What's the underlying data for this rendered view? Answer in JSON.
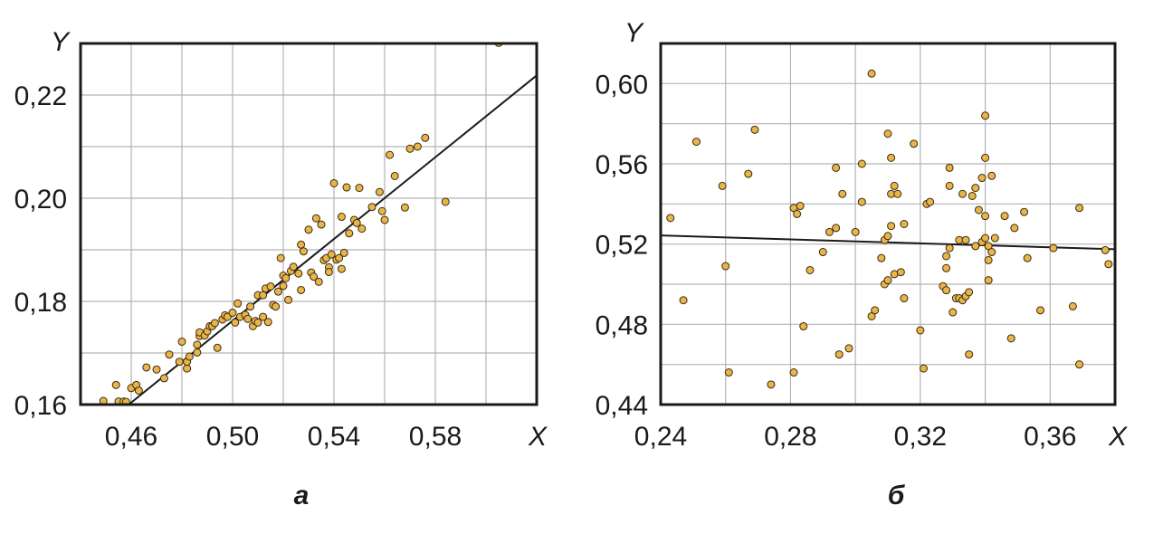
{
  "colors": {
    "point_fill": "#e8b54a",
    "point_stroke": "#3a2a10",
    "line": "#1a1a1a",
    "grid": "#b4b4b4"
  },
  "chart_data": [
    {
      "type": "scatter",
      "panel_label": "а",
      "xlabel": "X",
      "ylabel": "Y",
      "xlim": [
        0.44,
        0.62
      ],
      "ylim": [
        0.16,
        0.23
      ],
      "xticks": [
        0.46,
        0.5,
        0.54,
        0.58
      ],
      "yticks": [
        0.16,
        0.18,
        0.2,
        0.22
      ],
      "xtick_labels": [
        "0,46",
        "0,50",
        "0,54",
        "0,58"
      ],
      "ytick_labels": [
        "0,16",
        "0,18",
        "0,20",
        "0,22"
      ],
      "xgrid": [
        0.44,
        0.46,
        0.48,
        0.5,
        0.52,
        0.54,
        0.56,
        0.58,
        0.6,
        0.62
      ],
      "ygrid": [
        0.16,
        0.17,
        0.18,
        0.19,
        0.2,
        0.21,
        0.22,
        0.23
      ],
      "grid": true,
      "fit_line": {
        "x": [
          0.459,
          0.62
        ],
        "y": [
          0.16,
          0.2238
        ]
      },
      "points": [
        [
          0.449,
          0.1607
        ],
        [
          0.454,
          0.1638
        ],
        [
          0.455,
          0.1606
        ],
        [
          0.457,
          0.1606
        ],
        [
          0.458,
          0.1605
        ],
        [
          0.46,
          0.1632
        ],
        [
          0.462,
          0.1638
        ],
        [
          0.463,
          0.1627
        ],
        [
          0.466,
          0.1672
        ],
        [
          0.47,
          0.1668
        ],
        [
          0.473,
          0.1651
        ],
        [
          0.475,
          0.1697
        ],
        [
          0.479,
          0.1683
        ],
        [
          0.48,
          0.1722
        ],
        [
          0.482,
          0.167
        ],
        [
          0.482,
          0.1683
        ],
        [
          0.483,
          0.1693
        ],
        [
          0.486,
          0.1701
        ],
        [
          0.486,
          0.1716
        ],
        [
          0.487,
          0.1733
        ],
        [
          0.487,
          0.174
        ],
        [
          0.489,
          0.1734
        ],
        [
          0.49,
          0.1742
        ],
        [
          0.491,
          0.1752
        ],
        [
          0.492,
          0.1752
        ],
        [
          0.493,
          0.1758
        ],
        [
          0.494,
          0.171
        ],
        [
          0.496,
          0.1765
        ],
        [
          0.497,
          0.1773
        ],
        [
          0.498,
          0.177
        ],
        [
          0.5,
          0.1778
        ],
        [
          0.501,
          0.1759
        ],
        [
          0.502,
          0.1796
        ],
        [
          0.503,
          0.177
        ],
        [
          0.505,
          0.1774
        ],
        [
          0.506,
          0.1766
        ],
        [
          0.507,
          0.179
        ],
        [
          0.508,
          0.1752
        ],
        [
          0.509,
          0.1762
        ],
        [
          0.51,
          0.1759
        ],
        [
          0.51,
          0.1812
        ],
        [
          0.512,
          0.1812
        ],
        [
          0.512,
          0.177
        ],
        [
          0.513,
          0.1825
        ],
        [
          0.514,
          0.176
        ],
        [
          0.515,
          0.1829
        ],
        [
          0.516,
          0.1793
        ],
        [
          0.517,
          0.179
        ],
        [
          0.518,
          0.1819
        ],
        [
          0.519,
          0.1884
        ],
        [
          0.52,
          0.183
        ],
        [
          0.52,
          0.185
        ],
        [
          0.521,
          0.1845
        ],
        [
          0.522,
          0.1803
        ],
        [
          0.523,
          0.1859
        ],
        [
          0.524,
          0.1867
        ],
        [
          0.526,
          0.1854
        ],
        [
          0.527,
          0.1822
        ],
        [
          0.527,
          0.191
        ],
        [
          0.528,
          0.1897
        ],
        [
          0.53,
          0.1939
        ],
        [
          0.531,
          0.1856
        ],
        [
          0.532,
          0.1848
        ],
        [
          0.533,
          0.1961
        ],
        [
          0.534,
          0.1838
        ],
        [
          0.535,
          0.1949
        ],
        [
          0.536,
          0.188
        ],
        [
          0.537,
          0.1884
        ],
        [
          0.538,
          0.1866
        ],
        [
          0.538,
          0.1857
        ],
        [
          0.539,
          0.1891
        ],
        [
          0.54,
          0.2029
        ],
        [
          0.541,
          0.1881
        ],
        [
          0.542,
          0.1884
        ],
        [
          0.543,
          0.1863
        ],
        [
          0.543,
          0.1964
        ],
        [
          0.544,
          0.1894
        ],
        [
          0.545,
          0.2021
        ],
        [
          0.546,
          0.1932
        ],
        [
          0.548,
          0.1958
        ],
        [
          0.549,
          0.1952
        ],
        [
          0.55,
          0.202
        ],
        [
          0.551,
          0.1941
        ],
        [
          0.555,
          0.1983
        ],
        [
          0.558,
          0.2012
        ],
        [
          0.559,
          0.1975
        ],
        [
          0.56,
          0.1958
        ],
        [
          0.562,
          0.2084
        ],
        [
          0.564,
          0.2043
        ],
        [
          0.568,
          0.1982
        ],
        [
          0.57,
          0.2096
        ],
        [
          0.573,
          0.21
        ],
        [
          0.576,
          0.2117
        ],
        [
          0.584,
          0.1993
        ],
        [
          0.605,
          0.2301
        ]
      ]
    },
    {
      "type": "scatter",
      "panel_label": "б",
      "xlabel": "X",
      "ylabel": "Y",
      "xlim": [
        0.24,
        0.38
      ],
      "ylim": [
        0.44,
        0.62
      ],
      "xticks": [
        0.24,
        0.28,
        0.32,
        0.36
      ],
      "yticks": [
        0.44,
        0.48,
        0.52,
        0.56,
        0.6
      ],
      "xtick_labels": [
        "0,24",
        "0,28",
        "0,32",
        "0,36"
      ],
      "ytick_labels": [
        "0,44",
        "0,48",
        "0,52",
        "0,56",
        "0,60"
      ],
      "xgrid": [
        0.24,
        0.26,
        0.28,
        0.3,
        0.32,
        0.34,
        0.36,
        0.38
      ],
      "ygrid": [
        0.44,
        0.46,
        0.48,
        0.5,
        0.52,
        0.54,
        0.56,
        0.58,
        0.6,
        0.62
      ],
      "grid": true,
      "fit_line": {
        "x": [
          0.24,
          0.38
        ],
        "y": [
          0.5243,
          0.5174
        ]
      },
      "points": [
        [
          0.243,
          0.533
        ],
        [
          0.247,
          0.492
        ],
        [
          0.251,
          0.571
        ],
        [
          0.259,
          0.549
        ],
        [
          0.26,
          0.509
        ],
        [
          0.261,
          0.456
        ],
        [
          0.267,
          0.555
        ],
        [
          0.269,
          0.577
        ],
        [
          0.274,
          0.45
        ],
        [
          0.281,
          0.456
        ],
        [
          0.281,
          0.538
        ],
        [
          0.282,
          0.535
        ],
        [
          0.283,
          0.539
        ],
        [
          0.284,
          0.479
        ],
        [
          0.286,
          0.507
        ],
        [
          0.29,
          0.516
        ],
        [
          0.292,
          0.526
        ],
        [
          0.294,
          0.558
        ],
        [
          0.294,
          0.528
        ],
        [
          0.295,
          0.465
        ],
        [
          0.296,
          0.545
        ],
        [
          0.298,
          0.468
        ],
        [
          0.3,
          0.526
        ],
        [
          0.302,
          0.541
        ],
        [
          0.302,
          0.56
        ],
        [
          0.305,
          0.605
        ],
        [
          0.305,
          0.484
        ],
        [
          0.306,
          0.487
        ],
        [
          0.308,
          0.513
        ],
        [
          0.309,
          0.522
        ],
        [
          0.309,
          0.5
        ],
        [
          0.31,
          0.502
        ],
        [
          0.31,
          0.524
        ],
        [
          0.31,
          0.575
        ],
        [
          0.311,
          0.529
        ],
        [
          0.311,
          0.545
        ],
        [
          0.311,
          0.563
        ],
        [
          0.312,
          0.505
        ],
        [
          0.312,
          0.549
        ],
        [
          0.313,
          0.545
        ],
        [
          0.314,
          0.506
        ],
        [
          0.315,
          0.53
        ],
        [
          0.315,
          0.493
        ],
        [
          0.318,
          0.57
        ],
        [
          0.32,
          0.477
        ],
        [
          0.321,
          0.458
        ],
        [
          0.322,
          0.54
        ],
        [
          0.323,
          0.541
        ],
        [
          0.327,
          0.499
        ],
        [
          0.328,
          0.514
        ],
        [
          0.328,
          0.508
        ],
        [
          0.328,
          0.497
        ],
        [
          0.329,
          0.518
        ],
        [
          0.329,
          0.558
        ],
        [
          0.329,
          0.549
        ],
        [
          0.33,
          0.486
        ],
        [
          0.331,
          0.493
        ],
        [
          0.332,
          0.522
        ],
        [
          0.332,
          0.493
        ],
        [
          0.333,
          0.545
        ],
        [
          0.333,
          0.492
        ],
        [
          0.334,
          0.494
        ],
        [
          0.334,
          0.522
        ],
        [
          0.335,
          0.496
        ],
        [
          0.335,
          0.465
        ],
        [
          0.336,
          0.544
        ],
        [
          0.337,
          0.519
        ],
        [
          0.337,
          0.548
        ],
        [
          0.338,
          0.537
        ],
        [
          0.339,
          0.553
        ],
        [
          0.339,
          0.521
        ],
        [
          0.34,
          0.523
        ],
        [
          0.34,
          0.534
        ],
        [
          0.34,
          0.584
        ],
        [
          0.34,
          0.563
        ],
        [
          0.341,
          0.519
        ],
        [
          0.341,
          0.512
        ],
        [
          0.341,
          0.502
        ],
        [
          0.342,
          0.516
        ],
        [
          0.342,
          0.554
        ],
        [
          0.343,
          0.523
        ],
        [
          0.346,
          0.534
        ],
        [
          0.348,
          0.473
        ],
        [
          0.349,
          0.528
        ],
        [
          0.352,
          0.536
        ],
        [
          0.353,
          0.513
        ],
        [
          0.357,
          0.487
        ],
        [
          0.361,
          0.518
        ],
        [
          0.367,
          0.489
        ],
        [
          0.369,
          0.538
        ],
        [
          0.369,
          0.46
        ],
        [
          0.377,
          0.517
        ],
        [
          0.378,
          0.51
        ]
      ]
    }
  ]
}
